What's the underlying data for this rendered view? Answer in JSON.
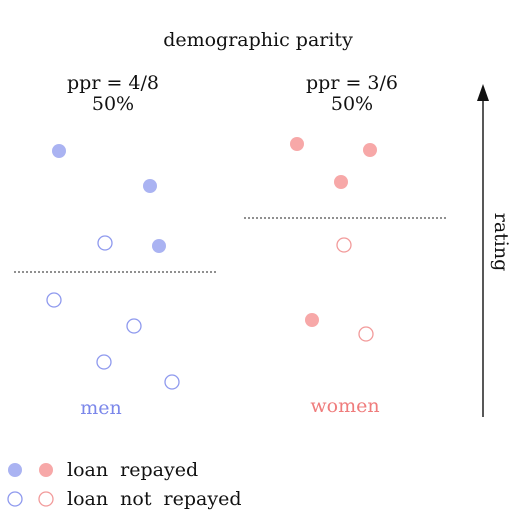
{
  "title": "demographic parity",
  "groups": [
    {
      "name": "men",
      "ppr_label": "ppr = 4/8",
      "ppr_pct": "50%",
      "color": "#aab3f2",
      "stroke": "#8e99ee",
      "label_color": "#7b87ea",
      "points": [
        {
          "filled": true
        },
        {
          "filled": true
        },
        {
          "filled": false
        },
        {
          "filled": true
        },
        {
          "filled": false
        },
        {
          "filled": false
        },
        {
          "filled": false
        },
        {
          "filled": false
        }
      ]
    },
    {
      "name": "women",
      "ppr_label": "ppr = 3/6",
      "ppr_pct": "50%",
      "color": "#f7a8a8",
      "stroke": "#f29a9a",
      "label_color": "#ef7c7c",
      "points": [
        {
          "filled": true
        },
        {
          "filled": true
        },
        {
          "filled": true
        },
        {
          "filled": false
        },
        {
          "filled": true
        },
        {
          "filled": false
        }
      ]
    }
  ],
  "axis": {
    "label": "rating",
    "icon": "up-arrow-icon"
  },
  "legend": [
    {
      "label": "loan  repayed",
      "filled": true
    },
    {
      "label": "loan  not  repayed",
      "filled": false
    }
  ]
}
